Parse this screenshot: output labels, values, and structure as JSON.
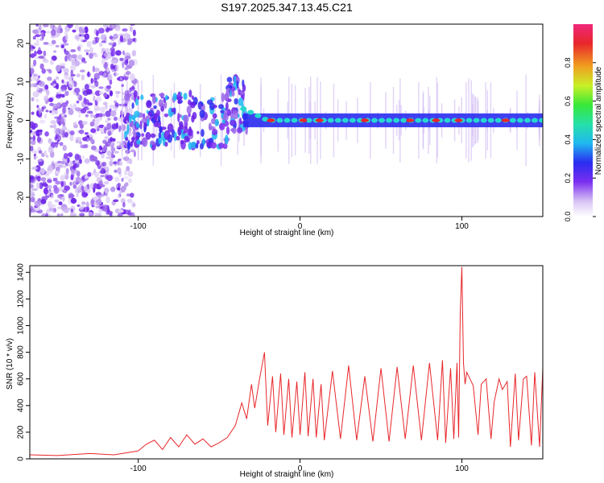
{
  "title": "S197.2025.347.13.45.C21",
  "colors": {
    "snr_line": "#e8262a",
    "spec_low": "#d8c4f4",
    "spec_mid": "#7b2ff0",
    "ridge": "#26d7d0",
    "peak": "#e8262a"
  },
  "chart_data": [
    {
      "type": "heatmap",
      "name": "spectrogram",
      "xlabel": "Height of straight line (km)",
      "ylabel": "Frequency (Hz)",
      "xlim": [
        -167,
        150
      ],
      "ylim": [
        -25,
        25
      ],
      "xticks": [
        -100,
        0,
        100
      ],
      "yticks": [
        -20,
        -10,
        0,
        10,
        20
      ],
      "dominant_frequency_hz": 0,
      "broadband_noise_range_km": [
        -167,
        -110
      ],
      "ridge_onset_km": -35,
      "colorbar": {
        "label": "Normalized spectral amplitude",
        "range": [
          0,
          1
        ],
        "ticks": [
          "0.0",
          "0.2",
          "0.4",
          "0.6",
          "0.8"
        ]
      }
    },
    {
      "type": "line",
      "name": "snr",
      "xlabel": "Height of straight line (km)",
      "ylabel": "SNR (10 * v/v)",
      "xlim": [
        -167,
        150
      ],
      "ylim": [
        0,
        1450
      ],
      "xticks": [
        -100,
        0,
        100
      ],
      "yticks": [
        0,
        200,
        400,
        600,
        800,
        1000,
        1200,
        1400
      ],
      "series": [
        {
          "name": "SNR",
          "x": [
            -167,
            -150,
            -130,
            -115,
            -100,
            -95,
            -90,
            -85,
            -80,
            -75,
            -70,
            -65,
            -60,
            -55,
            -50,
            -45,
            -40,
            -36,
            -33,
            -30,
            -28,
            -25,
            -22,
            -20,
            -17,
            -15,
            -12,
            -10,
            -7,
            -5,
            -2,
            0,
            3,
            5,
            8,
            10,
            13,
            15,
            20,
            25,
            30,
            35,
            40,
            45,
            50,
            55,
            60,
            65,
            70,
            75,
            80,
            85,
            88,
            90,
            93,
            95,
            97,
            98,
            99,
            100,
            101,
            102,
            103,
            105,
            107,
            110,
            112,
            115,
            118,
            120,
            123,
            125,
            128,
            130,
            133,
            135,
            138,
            140,
            143,
            145,
            148,
            150
          ],
          "values": [
            30,
            25,
            40,
            30,
            60,
            110,
            140,
            70,
            160,
            90,
            180,
            110,
            150,
            90,
            120,
            160,
            250,
            420,
            300,
            560,
            380,
            600,
            800,
            250,
            620,
            200,
            640,
            180,
            600,
            160,
            580,
            180,
            650,
            170,
            600,
            160,
            560,
            140,
            660,
            150,
            700,
            140,
            620,
            130,
            680,
            130,
            690,
            150,
            700,
            140,
            720,
            140,
            740,
            120,
            680,
            150,
            720,
            160,
            1100,
            1440,
            720,
            560,
            650,
            600,
            550,
            180,
            560,
            600,
            150,
            430,
            600,
            520,
            580,
            90,
            640,
            140,
            600,
            620,
            100,
            650,
            90,
            680
          ]
        }
      ]
    }
  ]
}
